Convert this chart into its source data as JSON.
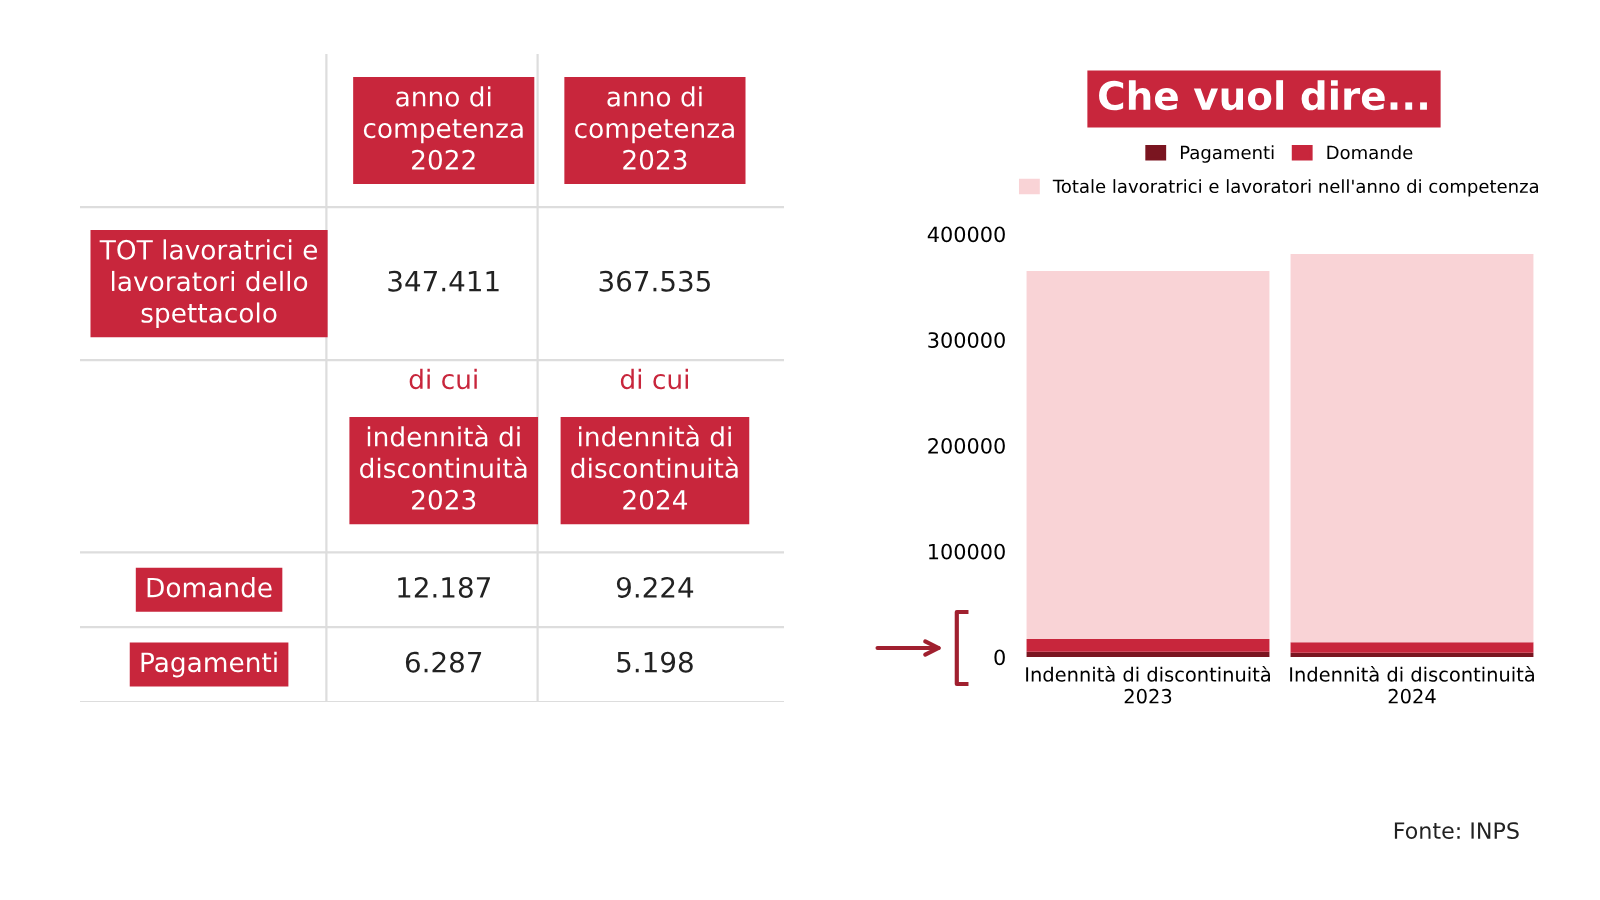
{
  "chart_data": [
    {
      "type": "other",
      "categories": [
        "anno di\ncompetenza\n2022",
        "anno di\ncompetenza\n2023"
      ],
      "y_categories": [
        "TOT lavoratrici e\nlavoratori dello\nspettacolo",
        null,
        "Domande",
        "Pagamenti"
      ],
      "cell_labels": [
        [
          "347.411",
          "367.535"
        ],
        [
          "di cui\nindennità di\ndiscontinuità\n2023",
          "di cui\nindennità di\ndiscontinuità\n2024"
        ],
        [
          "12.187",
          "9.224"
        ],
        [
          "6.287",
          "5.198"
        ]
      ]
    },
    {
      "type": "bar",
      "title": "Che vuol dire...",
      "categories": [
        "Indennità di discontinuità\n2023",
        "Indennità di discontinuità\n2024"
      ],
      "series": [
        {
          "name": "Pagamenti",
          "color": "#7a1520",
          "values": [
            5000,
            4000
          ]
        },
        {
          "name": "Domande",
          "color": "#c8263c",
          "values": [
            12000,
            10000
          ]
        },
        {
          "name": "Totale lavoratrici e lavoratori nell'anno di competenza",
          "color": "#f9d3d6",
          "values": [
            348000,
            367000
          ]
        }
      ],
      "stacked": true,
      "ylim": [
        0,
        400000
      ],
      "yticks": [
        0,
        100000,
        200000,
        300000,
        400000
      ],
      "grid": false,
      "legend": "top",
      "annotations": [
        "Fonte: INPS"
      ]
    }
  ]
}
